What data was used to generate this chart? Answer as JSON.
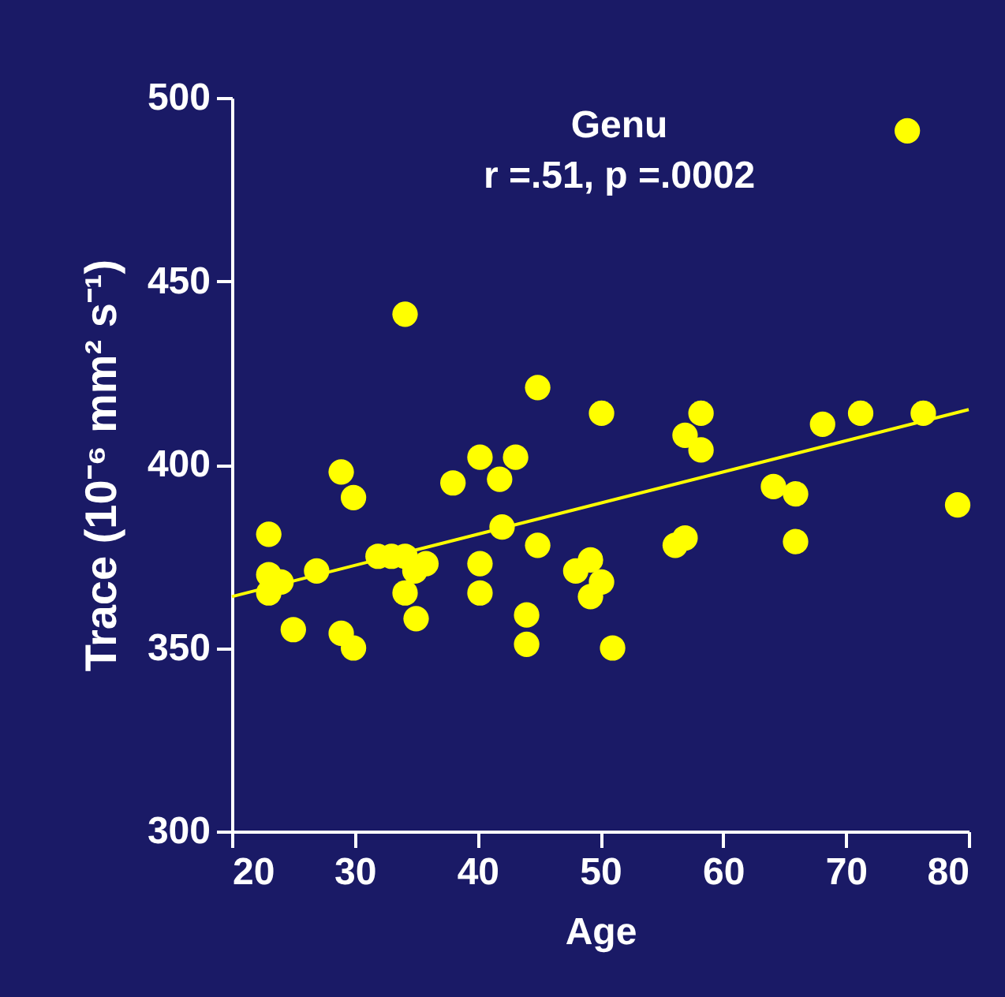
{
  "chart_data": {
    "type": "scatter",
    "title": "Genu",
    "xlabel": "Age",
    "ylabel": "Trace (10⁻⁶ mm² s⁻¹)",
    "annotations": [
      "r =.51, p =.0002"
    ],
    "xlim": [
      20,
      80
    ],
    "xticks": [
      20,
      30,
      40,
      50,
      60,
      70,
      80
    ],
    "ylim": [
      300,
      500
    ],
    "yticks": [
      300,
      350,
      400,
      450,
      500
    ],
    "grid": false,
    "marker": "circle",
    "series": [
      {
        "color": "#ffff00",
        "x": [
          75,
          34.1,
          44.9,
          50.1,
          58.2,
          56.9,
          58.2,
          68.1,
          71.2,
          76.3,
          79.1,
          64.1,
          65.9,
          65.9,
          56.9,
          56.1,
          28.9,
          29.9,
          23,
          38,
          40.2,
          41.8,
          43.1,
          42,
          40.2,
          40.2,
          44.9,
          44,
          44,
          48,
          49.2,
          49.2,
          50.1,
          51,
          31.9,
          33,
          34.1,
          34.1,
          34.9,
          35.8,
          35,
          26.9,
          23,
          24,
          23,
          25,
          28.9,
          29.9
        ],
        "values": [
          491,
          441,
          421,
          414,
          414,
          408,
          404,
          411,
          414,
          414,
          389,
          394,
          392,
          379,
          380,
          378,
          398,
          391,
          381,
          395,
          402,
          396,
          402,
          383,
          373,
          365,
          378,
          359,
          351,
          371,
          374,
          364,
          368,
          350,
          375,
          375,
          375,
          365,
          371,
          373,
          358,
          371,
          370,
          368,
          365,
          355,
          354,
          350
        ]
      },
      {
        "type": "line",
        "marker": "none",
        "color": "#ffff00",
        "x": [
          20,
          80
        ],
        "values": [
          364,
          415
        ]
      }
    ]
  }
}
